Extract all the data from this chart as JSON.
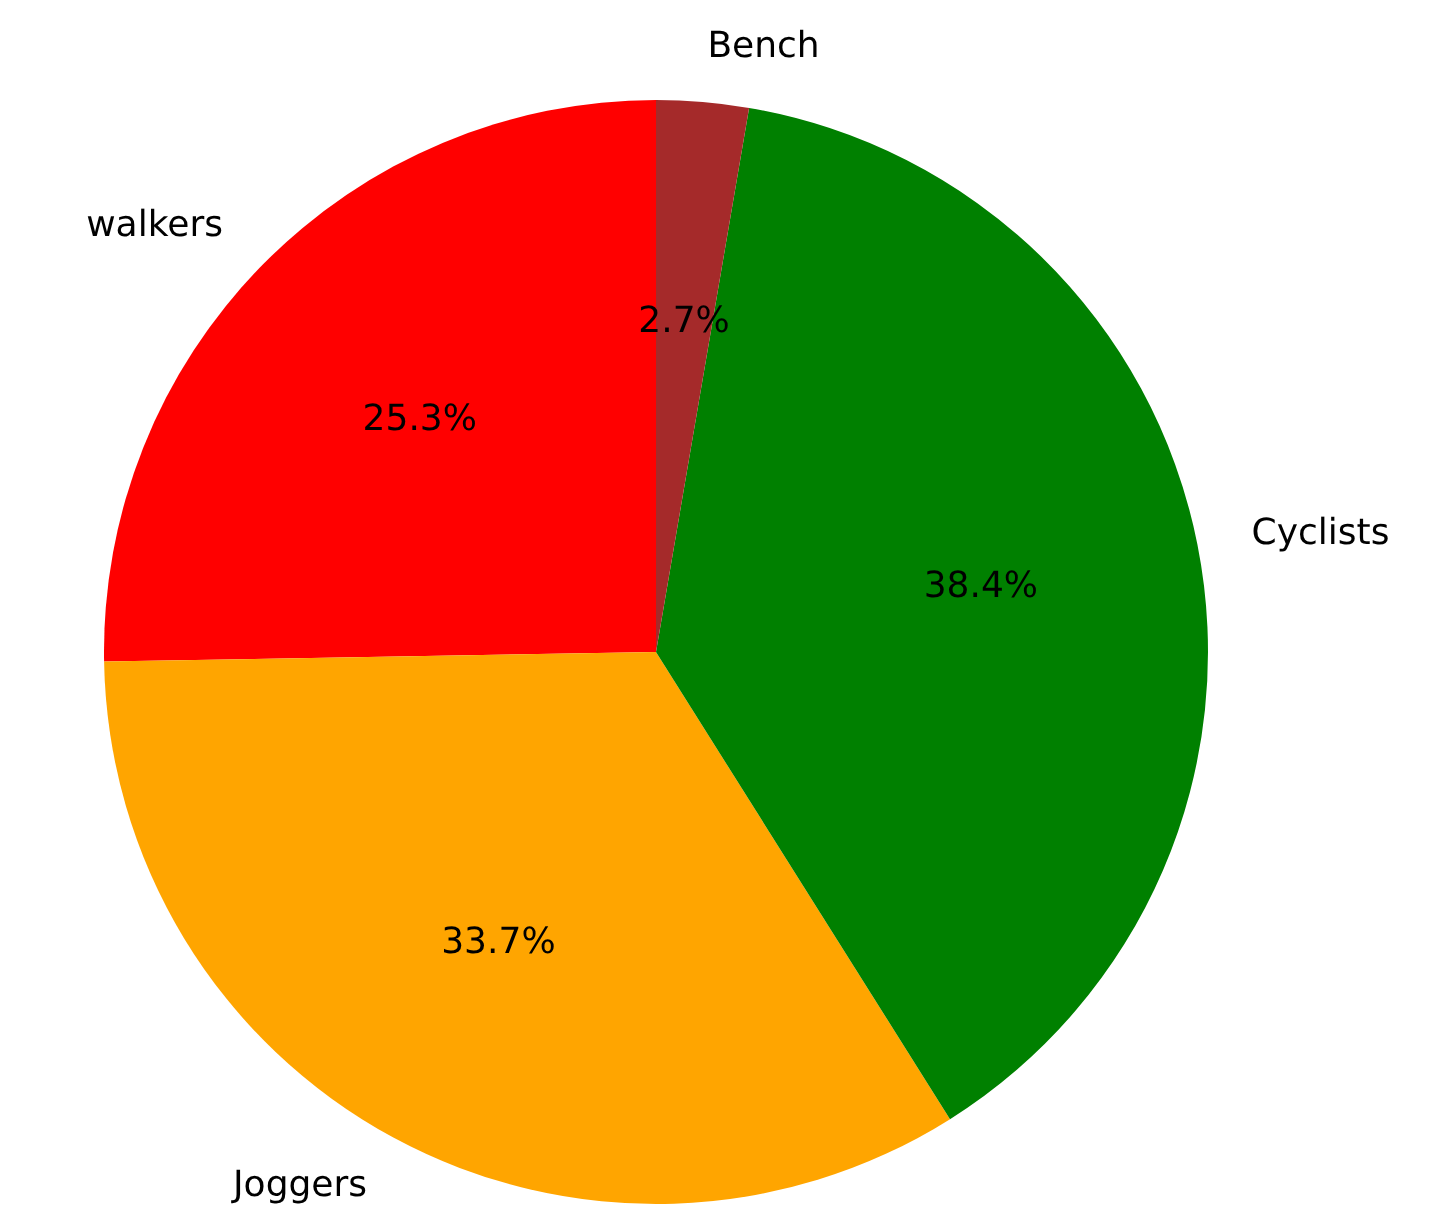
{
  "chart_data": {
    "type": "pie",
    "categories": [
      "walkers",
      "Joggers",
      "Cyclists",
      "Bench"
    ],
    "values": [
      25.3,
      33.7,
      38.4,
      2.7
    ],
    "colors": [
      "#ff0000",
      "#ffa500",
      "#008000",
      "#a52a2a"
    ],
    "value_labels": [
      "25.3%",
      "33.7%",
      "38.4%",
      "2.7%"
    ]
  }
}
